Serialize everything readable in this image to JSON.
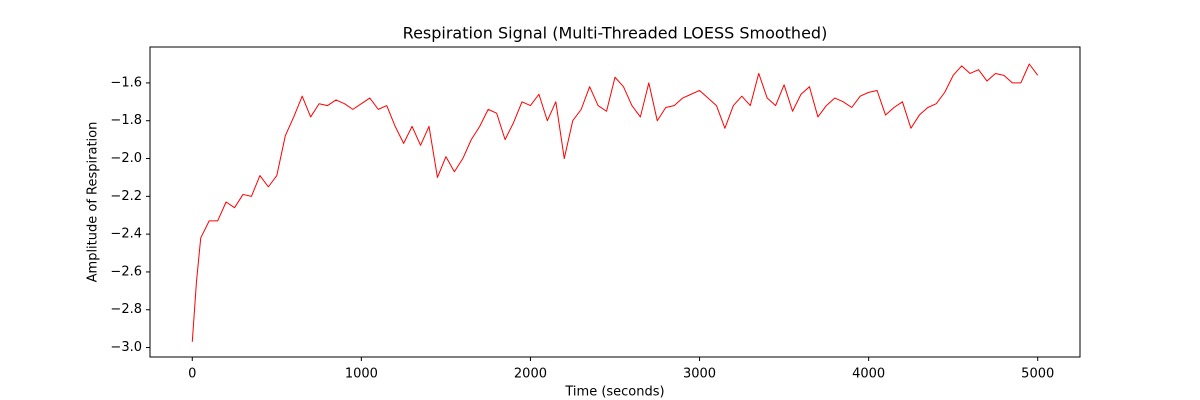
{
  "chart_data": {
    "type": "line",
    "title": "Respiration Signal (Multi-Threaded LOESS Smoothed)",
    "x_label": "Time (seconds)",
    "y_label": "Amplitude of Respiration",
    "x": [
      0,
      25,
      50,
      100,
      150,
      200,
      250,
      300,
      350,
      400,
      450,
      500,
      550,
      600,
      650,
      700,
      750,
      800,
      850,
      900,
      950,
      1000,
      1050,
      1100,
      1150,
      1200,
      1250,
      1300,
      1350,
      1400,
      1450,
      1500,
      1550,
      1600,
      1650,
      1700,
      1750,
      1800,
      1850,
      1900,
      1950,
      2000,
      2050,
      2100,
      2150,
      2200,
      2250,
      2300,
      2350,
      2400,
      2450,
      2500,
      2550,
      2600,
      2650,
      2700,
      2750,
      2800,
      2850,
      2900,
      2950,
      3000,
      3050,
      3100,
      3150,
      3200,
      3250,
      3300,
      3350,
      3400,
      3450,
      3500,
      3550,
      3600,
      3650,
      3700,
      3750,
      3800,
      3850,
      3900,
      3950,
      4000,
      4050,
      4100,
      4150,
      4200,
      4250,
      4300,
      4350,
      4400,
      4450,
      4500,
      4550,
      4600,
      4650,
      4700,
      4750,
      4800,
      4850,
      4900,
      4950,
      5000
    ],
    "series": [
      {
        "name": "Respiration",
        "color": "#ff0000",
        "values": [
          -2.97,
          -2.65,
          -2.42,
          -2.33,
          -2.33,
          -2.23,
          -2.26,
          -2.19,
          -2.2,
          -2.09,
          -2.15,
          -2.09,
          -1.88,
          -1.78,
          -1.67,
          -1.78,
          -1.71,
          -1.72,
          -1.69,
          -1.71,
          -1.74,
          -1.71,
          -1.68,
          -1.74,
          -1.72,
          -1.83,
          -1.92,
          -1.83,
          -1.93,
          -1.83,
          -2.1,
          -1.99,
          -2.07,
          -2.0,
          -1.9,
          -1.83,
          -1.74,
          -1.76,
          -1.9,
          -1.81,
          -1.7,
          -1.72,
          -1.66,
          -1.8,
          -1.7,
          -2.0,
          -1.8,
          -1.74,
          -1.62,
          -1.72,
          -1.75,
          -1.57,
          -1.62,
          -1.72,
          -1.78,
          -1.6,
          -1.8,
          -1.73,
          -1.72,
          -1.68,
          -1.66,
          -1.64,
          -1.68,
          -1.72,
          -1.84,
          -1.72,
          -1.67,
          -1.72,
          -1.55,
          -1.68,
          -1.72,
          -1.61,
          -1.75,
          -1.66,
          -1.62,
          -1.78,
          -1.72,
          -1.68,
          -1.7,
          -1.73,
          -1.67,
          -1.65,
          -1.64,
          -1.77,
          -1.73,
          -1.7,
          -1.84,
          -1.77,
          -1.73,
          -1.71,
          -1.65,
          -1.56,
          -1.51,
          -1.55,
          -1.53,
          -1.59,
          -1.55,
          -1.56,
          -1.6,
          -1.6,
          -1.5,
          -1.56
        ]
      }
    ],
    "xlim": [
      -250,
      5250
    ],
    "ylim": [
      -3.05,
      -1.41
    ],
    "xticks": [
      0,
      1000,
      2000,
      3000,
      4000,
      5000
    ],
    "yticks": [
      {
        "value": -3.0,
        "label": "−3.0"
      },
      {
        "value": -2.8,
        "label": "−2.8"
      },
      {
        "value": -2.6,
        "label": "−2.6"
      },
      {
        "value": -2.4,
        "label": "−2.4"
      },
      {
        "value": -2.2,
        "label": "−2.2"
      },
      {
        "value": -2.0,
        "label": "−2.0"
      },
      {
        "value": -1.8,
        "label": "−1.8"
      },
      {
        "value": -1.6,
        "label": "−1.6"
      }
    ],
    "grid": false
  }
}
